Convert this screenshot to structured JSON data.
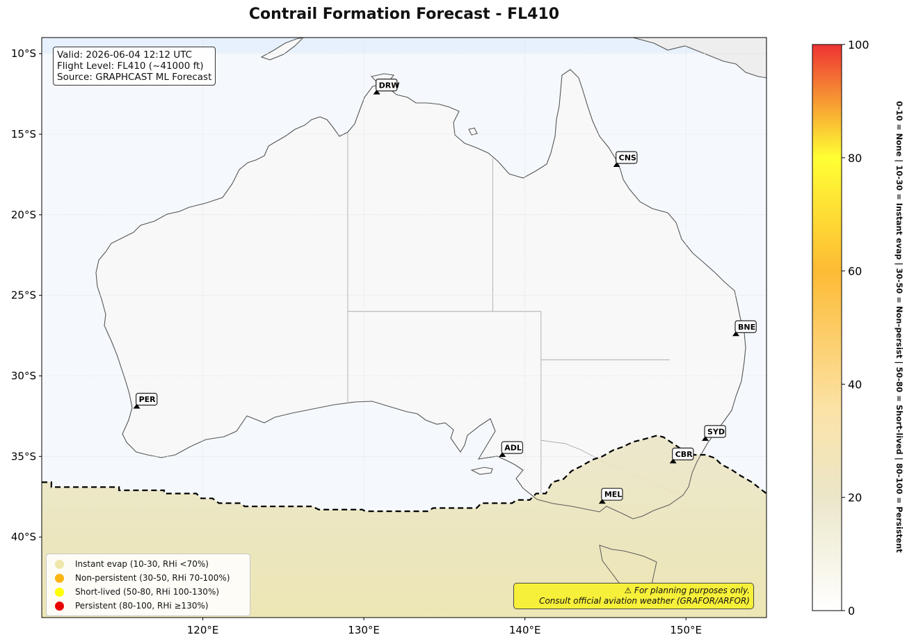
{
  "title": "Contrail Formation Forecast - FL410",
  "info": {
    "valid": "Valid: 2026-06-04 12:12 UTC",
    "flight_level": "Flight Level: FL410 (~41000 ft)",
    "source": "Source: GRAPHCAST ML Forecast"
  },
  "map": {
    "lon_range": [
      110,
      155
    ],
    "lat_range": [
      -45,
      -9
    ],
    "lat_ticks": [
      {
        "value": -10,
        "label": "10°S"
      },
      {
        "value": -15,
        "label": "15°S"
      },
      {
        "value": -20,
        "label": "20°S"
      },
      {
        "value": -25,
        "label": "25°S"
      },
      {
        "value": -30,
        "label": "30°S"
      },
      {
        "value": -35,
        "label": "35°S"
      },
      {
        "value": -40,
        "label": "40°S"
      }
    ],
    "lon_ticks": [
      {
        "value": 120,
        "label": "120°E"
      },
      {
        "value": 130,
        "label": "130°E"
      },
      {
        "value": 140,
        "label": "140°E"
      },
      {
        "value": 150,
        "label": "150°E"
      }
    ],
    "colors": {
      "ocean": "#f5f9fd",
      "land": "#f8f8f8",
      "coast": "#555555",
      "boundary": "#a0a0a0",
      "grid": "#d8d8d8"
    },
    "airports": [
      {
        "code": "DRW",
        "lon": 130.8,
        "lat": -12.4
      },
      {
        "code": "CNS",
        "lon": 145.7,
        "lat": -16.9
      },
      {
        "code": "BNE",
        "lon": 153.1,
        "lat": -27.4
      },
      {
        "code": "PER",
        "lon": 115.9,
        "lat": -31.9
      },
      {
        "code": "SYD",
        "lon": 151.2,
        "lat": -33.9
      },
      {
        "code": "ADL",
        "lon": 138.6,
        "lat": -34.9
      },
      {
        "code": "CBR",
        "lon": 149.2,
        "lat": -35.3
      },
      {
        "code": "MEL",
        "lon": 144.8,
        "lat": -37.8
      }
    ],
    "contrail_zone": {
      "color_low": "#ece4ae",
      "color_high": "#ebe6c9",
      "boundary_style": "dashed-black",
      "boundary": [
        [
          110,
          -36.6
        ],
        [
          110.6,
          -36.6
        ],
        [
          110.6,
          -36.9
        ],
        [
          114.8,
          -36.9
        ],
        [
          114.8,
          -37.1
        ],
        [
          117.6,
          -37.1
        ],
        [
          117.6,
          -37.3
        ],
        [
          119.6,
          -37.3
        ],
        [
          119.9,
          -37.6
        ],
        [
          120.6,
          -37.6
        ],
        [
          121.0,
          -37.9
        ],
        [
          122.3,
          -37.9
        ],
        [
          122.6,
          -38.1
        ],
        [
          126.8,
          -38.1
        ],
        [
          127.2,
          -38.3
        ],
        [
          129.9,
          -38.3
        ],
        [
          130.1,
          -38.4
        ],
        [
          134.0,
          -38.4
        ],
        [
          134.3,
          -38.2
        ],
        [
          137.0,
          -38.2
        ],
        [
          137.3,
          -37.9
        ],
        [
          139.2,
          -37.9
        ],
        [
          139.5,
          -37.7
        ],
        [
          140.3,
          -37.7
        ],
        [
          140.7,
          -37.3
        ],
        [
          141.3,
          -37.3
        ],
        [
          141.7,
          -36.6
        ],
        [
          142.4,
          -36.4
        ],
        [
          142.9,
          -35.9
        ],
        [
          143.5,
          -35.6
        ],
        [
          144.2,
          -35.2
        ],
        [
          144.8,
          -35.0
        ],
        [
          145.5,
          -34.6
        ],
        [
          146.1,
          -34.4
        ],
        [
          146.7,
          -34.1
        ],
        [
          147.5,
          -33.9
        ],
        [
          148.2,
          -33.7
        ],
        [
          148.6,
          -33.8
        ],
        [
          149.2,
          -34.2
        ],
        [
          149.8,
          -34.6
        ],
        [
          150.3,
          -34.9
        ],
        [
          151.2,
          -34.9
        ],
        [
          151.8,
          -35.1
        ],
        [
          152.2,
          -35.5
        ],
        [
          152.8,
          -35.8
        ],
        [
          153.4,
          -36.2
        ],
        [
          154.1,
          -36.6
        ],
        [
          154.6,
          -37.0
        ],
        [
          155,
          -37.3
        ]
      ]
    }
  },
  "colorbar": {
    "min": 0,
    "max": 100,
    "ticks": [
      "0",
      "20",
      "40",
      "60",
      "80",
      "100"
    ],
    "stops": [
      {
        "v": 0,
        "c": "#ffffff"
      },
      {
        "v": 20,
        "c": "#ebe6c9"
      },
      {
        "v": 35,
        "c": "#fbe3a8"
      },
      {
        "v": 60,
        "c": "#fdbb35"
      },
      {
        "v": 80,
        "c": "#ffff33"
      },
      {
        "v": 100,
        "c": "#ee3333"
      }
    ],
    "label": "0-10 = None  |  10-30 = Instant evap  |  30-50 = Non-persist  |  50-80 = Short-lived  |  80-100 = Persistent"
  },
  "legend": [
    {
      "label": "Instant evap (10-30, RHi <70%)",
      "color": "#efe6a9"
    },
    {
      "label": "Non-persistent (30-50, RHi 70-100%)",
      "color": "#fdb515"
    },
    {
      "label": "Short-lived (50-80, RHi 100-130%)",
      "color": "#ffff00"
    },
    {
      "label": "Persistent (80-100, RHi ≥130%)",
      "color": "#e80000"
    }
  ],
  "disclaimer": {
    "line1": "⚠ For planning purposes only.",
    "line2": "Consult official aviation weather (GRAFOR/ARFOR)"
  }
}
